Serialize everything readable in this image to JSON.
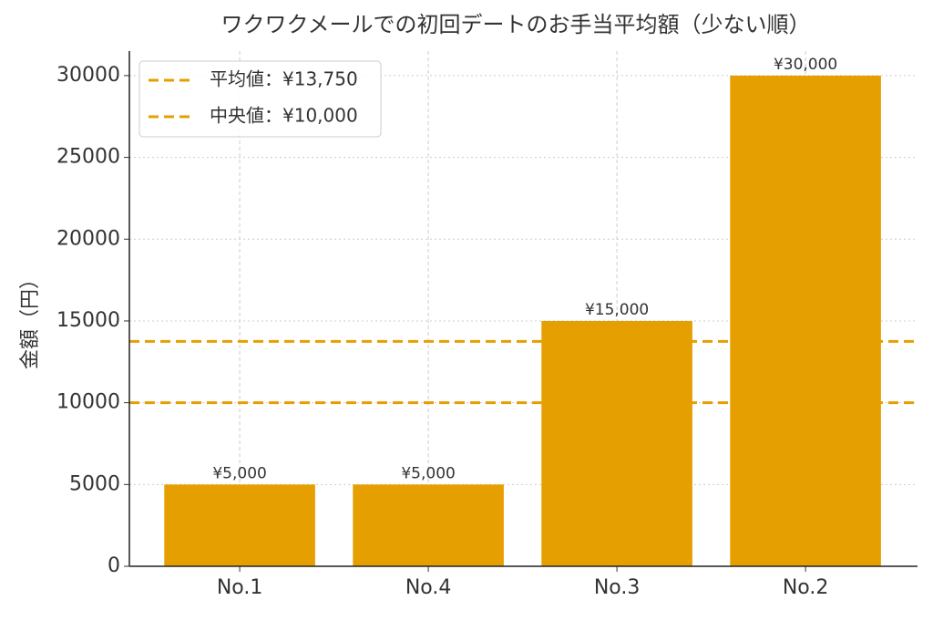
{
  "chart_data": {
    "type": "bar",
    "title": "ワクワクメールでの初回デートのお手当平均額（少ない順）",
    "y_label": "金額（円）",
    "categories": [
      "No.1",
      "No.4",
      "No.3",
      "No.2"
    ],
    "values": [
      5000,
      5000,
      15000,
      30000
    ],
    "value_labels": [
      "¥5,000",
      "¥5,000",
      "¥15,000",
      "¥30,000"
    ],
    "color": "#e69f00",
    "ylim": [
      0,
      31500
    ],
    "yticks": [
      0,
      5000,
      10000,
      15000,
      20000,
      25000,
      30000
    ],
    "grid": true,
    "legend": "upper left",
    "reference_lines": [
      {
        "name": "平均値：¥13,750",
        "value": 13750,
        "color": "#e69f00"
      },
      {
        "name": "中央値：¥10,000",
        "value": 10000,
        "color": "#e69f00"
      }
    ]
  }
}
